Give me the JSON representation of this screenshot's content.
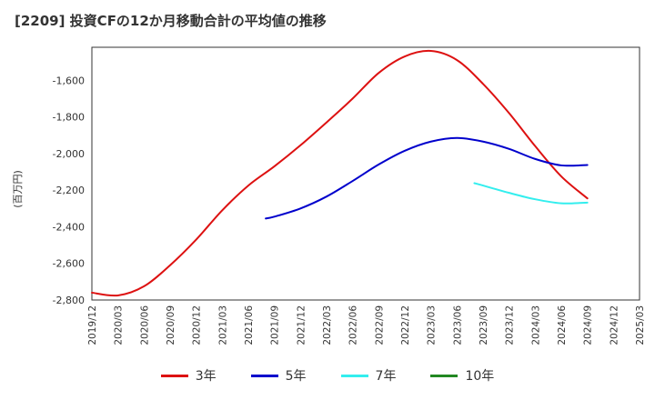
{
  "chart_data": {
    "type": "line",
    "title": "[2209]  投資CFの12か月移動合計の平均値の推移",
    "ylabel": "(百万円)",
    "xlabel": "",
    "ylim": [
      -2800,
      -1420
    ],
    "yticks": [
      -2800,
      -2600,
      -2400,
      -2200,
      -2000,
      -1800,
      -1600
    ],
    "ytick_labels": [
      "-2,800",
      "-2,600",
      "-2,400",
      "-2,200",
      "-2,000",
      "-1,800",
      "-1,600"
    ],
    "xticks": [
      "2019/12",
      "2020/03",
      "2020/06",
      "2020/09",
      "2020/12",
      "2021/03",
      "2021/06",
      "2021/09",
      "2021/12",
      "2022/03",
      "2022/06",
      "2022/09",
      "2022/12",
      "2023/03",
      "2023/06",
      "2023/09",
      "2023/12",
      "2024/03",
      "2024/06",
      "2024/09",
      "2024/12",
      "2025/03"
    ],
    "grid": true,
    "legend_position": "bottom",
    "series": [
      {
        "name": "3年",
        "color": "#dd1111",
        "points": [
          [
            "2019/12",
            -2760
          ],
          [
            "2020/03",
            -2775
          ],
          [
            "2020/06",
            -2725
          ],
          [
            "2020/09",
            -2610
          ],
          [
            "2020/12",
            -2470
          ],
          [
            "2021/03",
            -2310
          ],
          [
            "2021/06",
            -2175
          ],
          [
            "2021/09",
            -2070
          ],
          [
            "2021/12",
            -1955
          ],
          [
            "2022/03",
            -1830
          ],
          [
            "2022/06",
            -1700
          ],
          [
            "2022/09",
            -1560
          ],
          [
            "2022/12",
            -1470
          ],
          [
            "2023/03",
            -1440
          ],
          [
            "2023/06",
            -1490
          ],
          [
            "2023/09",
            -1620
          ],
          [
            "2023/12",
            -1780
          ],
          [
            "2024/03",
            -1960
          ],
          [
            "2024/06",
            -2125
          ],
          [
            "2024/09",
            -2245
          ]
        ]
      },
      {
        "name": "5年",
        "color": "#0000cc",
        "points": [
          [
            "2021/08",
            -2355
          ],
          [
            "2021/09",
            -2345
          ],
          [
            "2021/12",
            -2300
          ],
          [
            "2022/03",
            -2235
          ],
          [
            "2022/06",
            -2150
          ],
          [
            "2022/09",
            -2060
          ],
          [
            "2022/12",
            -1985
          ],
          [
            "2023/03",
            -1935
          ],
          [
            "2023/06",
            -1915
          ],
          [
            "2023/09",
            -1935
          ],
          [
            "2023/12",
            -1975
          ],
          [
            "2024/03",
            -2030
          ],
          [
            "2024/06",
            -2065
          ],
          [
            "2024/09",
            -2063
          ]
        ]
      },
      {
        "name": "7年",
        "color": "#33eeee",
        "points": [
          [
            "2023/08",
            -2162
          ],
          [
            "2023/09",
            -2175
          ],
          [
            "2023/12",
            -2215
          ],
          [
            "2024/03",
            -2250
          ],
          [
            "2024/06",
            -2272
          ],
          [
            "2024/09",
            -2268
          ]
        ]
      },
      {
        "name": "10年",
        "color": "#228822",
        "points": []
      }
    ]
  }
}
